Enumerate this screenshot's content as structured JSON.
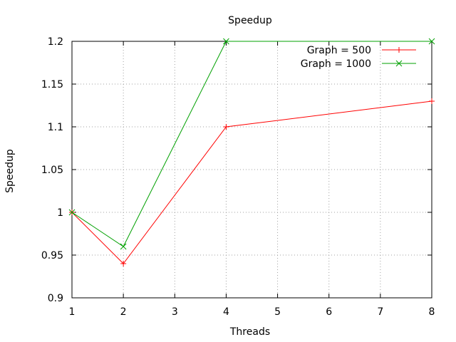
{
  "chart_data": {
    "type": "line",
    "title": "Speedup",
    "xlabel": "Threads",
    "ylabel": "Speedup",
    "xlim": [
      1,
      8
    ],
    "ylim": [
      0.9,
      1.2
    ],
    "xticks": [
      "1",
      "2",
      "3",
      "4",
      "5",
      "6",
      "7",
      "8"
    ],
    "yticks": [
      "0.9",
      "0.95",
      "1",
      "1.05",
      "1.1",
      "1.15",
      "1.2"
    ],
    "grid": true,
    "legend_position": "top-right",
    "series": [
      {
        "name": "Graph = 500",
        "color": "#ff0000",
        "marker": "plus",
        "x": [
          1,
          2,
          4,
          8
        ],
        "y": [
          1.0,
          0.94,
          1.1,
          1.13
        ]
      },
      {
        "name": "Graph = 1000",
        "color": "#00a000",
        "marker": "cross",
        "x": [
          1,
          2,
          4,
          8
        ],
        "y": [
          1.0,
          0.96,
          1.2,
          1.2
        ]
      }
    ]
  }
}
